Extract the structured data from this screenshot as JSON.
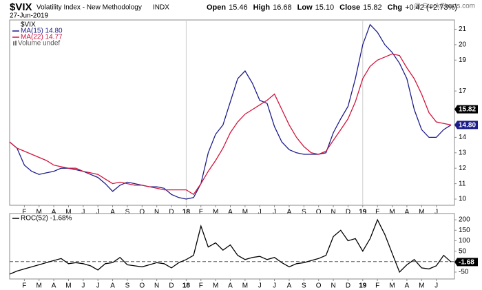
{
  "header": {
    "symbol": "$VIX",
    "name": "Volatility Index - New Methodology",
    "exchange": "INDX",
    "date": "27-Jun-2019",
    "quote": [
      [
        "Open",
        "15.46"
      ],
      [
        "High",
        "16.68"
      ],
      [
        "Low",
        "15.10"
      ],
      [
        "Close",
        "15.82"
      ],
      [
        "Chg",
        "+0.42 (+2.73%)"
      ]
    ],
    "brand": "@ StockCharts.com"
  },
  "chart_data": [
    {
      "type": "line",
      "legend_extra": [
        "$VIX",
        "Volume undef"
      ],
      "categories": [
        null,
        null,
        "F",
        null,
        "M",
        null,
        "A",
        null,
        "M",
        null,
        "J",
        null,
        "J",
        null,
        "A",
        null,
        "S",
        null,
        "O",
        null,
        "N",
        null,
        "D",
        null,
        "18",
        null,
        "F",
        null,
        "M",
        null,
        "A",
        null,
        "M",
        null,
        "J",
        null,
        "J",
        null,
        "A",
        null,
        "S",
        null,
        "O",
        null,
        "N",
        null,
        "D",
        null,
        "19",
        null,
        "F",
        null,
        "M",
        null,
        "A",
        null,
        "M",
        null,
        "J",
        null,
        null
      ],
      "series": [
        {
          "name": "MA(15) 14.80",
          "color": "#1c1c8a",
          "values": [
            13.7,
            13.3,
            12.2,
            11.8,
            11.6,
            11.7,
            11.8,
            12.0,
            12.0,
            11.9,
            11.8,
            11.6,
            11.4,
            11.0,
            10.5,
            10.9,
            11.1,
            11.0,
            10.9,
            10.8,
            10.8,
            10.7,
            10.3,
            10.1,
            10.0,
            10.1,
            11.0,
            13.0,
            14.2,
            14.8,
            16.3,
            17.8,
            18.3,
            17.5,
            16.4,
            16.2,
            14.7,
            13.7,
            13.2,
            13.0,
            12.9,
            12.9,
            12.9,
            13.0,
            14.3,
            15.2,
            16.0,
            17.8,
            20.0,
            21.3,
            20.8,
            20.0,
            19.5,
            18.8,
            17.8,
            15.8,
            14.5,
            14.0,
            14.0,
            14.5,
            14.8
          ]
        },
        {
          "name": "MA(22) 14.77",
          "color": "#d2143c",
          "values": [
            13.7,
            13.3,
            13.1,
            12.9,
            12.7,
            12.5,
            12.2,
            12.1,
            12.0,
            12.0,
            11.8,
            11.7,
            11.6,
            11.3,
            11.0,
            11.1,
            11.0,
            10.9,
            10.9,
            10.8,
            10.7,
            10.6,
            10.6,
            10.6,
            10.6,
            10.3,
            11.0,
            11.8,
            12.5,
            13.3,
            14.3,
            15.0,
            15.5,
            15.8,
            16.1,
            16.4,
            16.8,
            15.8,
            14.8,
            14.0,
            13.4,
            13.0,
            12.9,
            13.1,
            13.8,
            14.5,
            15.2,
            16.3,
            17.8,
            18.6,
            19.0,
            19.2,
            19.4,
            19.3,
            18.5,
            17.8,
            16.8,
            15.6,
            15.0,
            14.9,
            14.8
          ]
        }
      ],
      "ylim": [
        9.6,
        21.6
      ],
      "yticks": [
        10,
        11,
        12,
        13,
        14,
        17,
        19,
        20,
        21
      ],
      "end_labels": [
        {
          "value": 15.82,
          "label": "15.82",
          "color": "#000000"
        },
        {
          "value": 14.8,
          "label": "14.80",
          "color": "#1c1c8a"
        }
      ]
    },
    {
      "type": "line",
      "categories": [
        null,
        null,
        "F",
        null,
        "M",
        null,
        "A",
        null,
        "M",
        null,
        "J",
        null,
        "J",
        null,
        "A",
        null,
        "S",
        null,
        "O",
        null,
        "N",
        null,
        "D",
        null,
        "18",
        null,
        "F",
        null,
        "M",
        null,
        "A",
        null,
        "M",
        null,
        "J",
        null,
        "J",
        null,
        "A",
        null,
        "S",
        null,
        "O",
        null,
        "N",
        null,
        "D",
        null,
        "19",
        null,
        "F",
        null,
        "M",
        null,
        "A",
        null,
        "M",
        null,
        "J",
        null,
        null
      ],
      "series": [
        {
          "name": "ROC(52) -1.68%",
          "color": "#000000",
          "values": [
            -60,
            -45,
            -35,
            -25,
            -15,
            -5,
            5,
            15,
            -10,
            -5,
            -10,
            -20,
            -40,
            -10,
            -5,
            20,
            -15,
            -20,
            -25,
            -15,
            -5,
            -10,
            -30,
            -5,
            10,
            30,
            170,
            70,
            90,
            55,
            80,
            30,
            10,
            20,
            25,
            10,
            20,
            -5,
            -25,
            -10,
            -5,
            5,
            15,
            30,
            120,
            150,
            100,
            110,
            50,
            110,
            200,
            130,
            40,
            -50,
            -15,
            10,
            -30,
            -35,
            -20,
            30,
            -1.68
          ]
        }
      ],
      "ylim": [
        -83,
        230
      ],
      "yticks": [
        -50,
        50,
        100,
        150,
        200
      ],
      "hline": 0,
      "end_labels": [
        {
          "value": -1.68,
          "label": "-1.68",
          "color": "#000000"
        }
      ]
    }
  ]
}
